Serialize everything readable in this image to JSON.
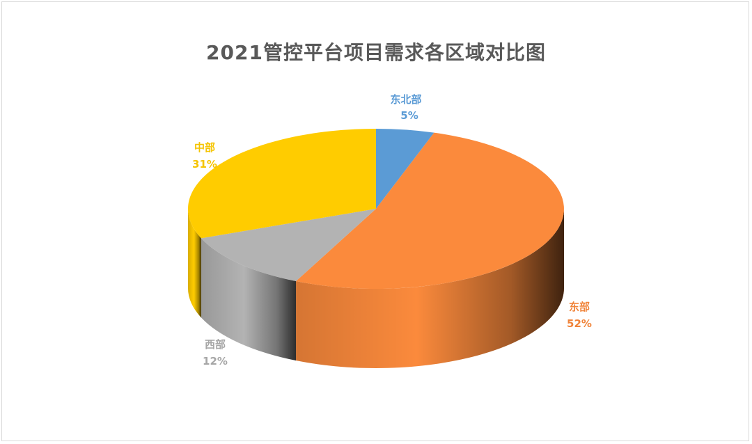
{
  "chart_data": {
    "type": "pie",
    "title": "2021管控平台项目需求各区域对比图",
    "slices": [
      {
        "label": "东北部",
        "pct_label": "5%",
        "value": 5,
        "color": "#5b9bd5",
        "dark": "#2e5f8e"
      },
      {
        "label": "东部",
        "pct_label": "52%",
        "value": 52,
        "color": "#fb8a3c",
        "dark": "#b3561a"
      },
      {
        "label": "西部",
        "pct_label": "12%",
        "value": 12,
        "color": "#b3b3b3",
        "dark": "#6f6f6f"
      },
      {
        "label": "中部",
        "pct_label": "31%",
        "value": 31,
        "color": "#ffcc00",
        "dark": "#b38f00"
      }
    ]
  }
}
